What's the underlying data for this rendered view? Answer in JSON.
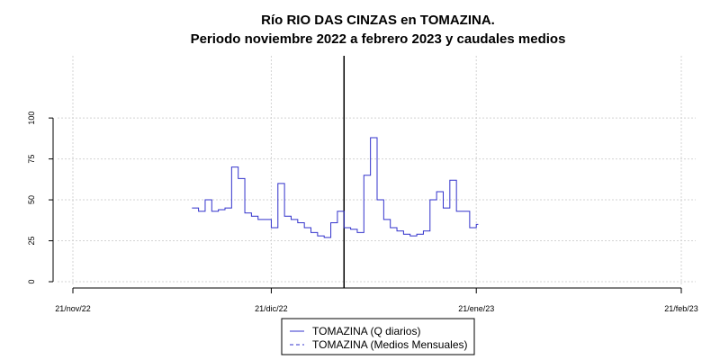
{
  "chart_data": {
    "type": "line",
    "title": "Río RIO DAS CINZAS en TOMAZINA.",
    "subtitle": "Periodo noviembre 2022 a febrero 2023 y caudales medios",
    "xlabel": "",
    "ylabel": "",
    "x_range": [
      "2022-11-21",
      "2023-02-21"
    ],
    "y_range": [
      0,
      138
    ],
    "x_ticks": [
      {
        "date": "2022-11-21",
        "label": "21/nov/22"
      },
      {
        "date": "2022-12-21",
        "label": "21/dic/22"
      },
      {
        "date": "2023-01-21",
        "label": "21/ene/23"
      },
      {
        "date": "2023-02-21",
        "label": "21/feb/23"
      }
    ],
    "y_ticks": [
      0,
      25,
      50,
      75,
      100
    ],
    "grid": true,
    "vline_date": "2023-01-01",
    "vline_color": "#000000",
    "legend_position": "bottom",
    "series": [
      {
        "name": "TOMAZINA (Q diarios)",
        "color": "#3333cc",
        "style": "solid",
        "x": [
          "2022-12-09",
          "2022-12-10",
          "2022-12-11",
          "2022-12-12",
          "2022-12-13",
          "2022-12-14",
          "2022-12-15",
          "2022-12-16",
          "2022-12-17",
          "2022-12-18",
          "2022-12-19",
          "2022-12-20",
          "2022-12-21",
          "2022-12-22",
          "2022-12-23",
          "2022-12-24",
          "2022-12-25",
          "2022-12-26",
          "2022-12-27",
          "2022-12-28",
          "2022-12-29",
          "2022-12-30",
          "2022-12-31",
          "2023-01-01",
          "2023-01-02",
          "2023-01-03",
          "2023-01-04",
          "2023-01-05",
          "2023-01-06",
          "2023-01-07",
          "2023-01-08",
          "2023-01-09",
          "2023-01-10",
          "2023-01-11",
          "2023-01-12",
          "2023-01-13",
          "2023-01-14",
          "2023-01-15",
          "2023-01-16",
          "2023-01-17",
          "2023-01-18",
          "2023-01-19",
          "2023-01-20",
          "2023-01-21"
        ],
        "y": [
          45,
          43,
          50,
          43,
          44,
          45,
          70,
          63,
          42,
          40,
          38,
          38,
          33,
          60,
          40,
          38,
          36,
          33,
          30,
          28,
          27,
          36,
          43,
          33,
          32,
          30,
          65,
          88,
          50,
          38,
          33,
          31,
          29,
          28,
          29,
          31,
          50,
          55,
          45,
          62,
          43,
          43,
          33,
          35
        ]
      },
      {
        "name": "TOMAZINA (Medios Mensuales)",
        "color": "#3333cc",
        "style": "dashed",
        "x": [],
        "y": []
      }
    ]
  }
}
